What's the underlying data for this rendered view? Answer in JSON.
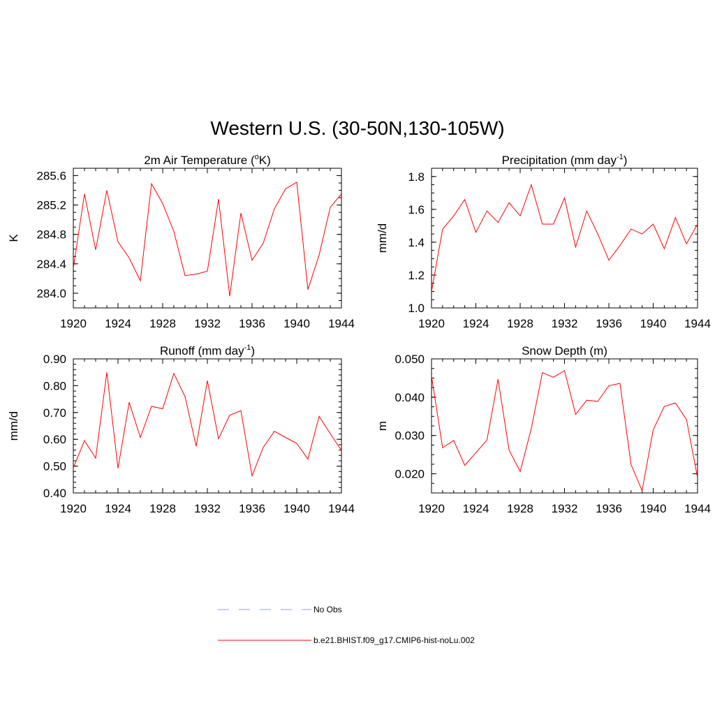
{
  "figure": {
    "title": "Western U.S. (30-50N,130-105W)"
  },
  "legend": {
    "items": [
      {
        "label": "No Obs",
        "color": "#9999ff",
        "style": "dashed"
      },
      {
        "label": "b.e21.BHIST.f09_g17.CMIP6-hist-noLu.002",
        "color": "#ff0000",
        "style": "solid"
      }
    ]
  },
  "chart_data": [
    {
      "type": "line",
      "title": "2m Air Temperature (",
      "title_sup": "o",
      "title_after": "K)",
      "ylabel": "K",
      "xlim": [
        1920,
        1944
      ],
      "ylim": [
        283.8,
        285.7
      ],
      "xticks": [
        "1920",
        "1924",
        "1928",
        "1932",
        "1936",
        "1940",
        "1944"
      ],
      "yticks": [
        "284.0",
        "284.4",
        "284.8",
        "285.2",
        "285.6"
      ],
      "x": [
        1920,
        1921,
        1922,
        1923,
        1924,
        1925,
        1926,
        1927,
        1928,
        1929,
        1930,
        1931,
        1932,
        1933,
        1934,
        1935,
        1936,
        1937,
        1938,
        1939,
        1940,
        1941,
        1942,
        1943,
        1944
      ],
      "series": [
        {
          "color": "#ff0000",
          "values": [
            284.34,
            285.35,
            284.59,
            285.4,
            284.7,
            284.48,
            284.17,
            285.49,
            285.22,
            284.84,
            284.24,
            284.26,
            284.3,
            285.28,
            283.96,
            285.09,
            284.45,
            284.68,
            285.15,
            285.42,
            285.51,
            284.05,
            284.52,
            285.17,
            285.35
          ]
        }
      ]
    },
    {
      "type": "line",
      "title": "Precipitation (mm day",
      "title_sup": "-1",
      "title_after": ")",
      "ylabel": "mm/d",
      "xlim": [
        1920,
        1944
      ],
      "ylim": [
        1.0,
        1.85
      ],
      "xticks": [
        "1920",
        "1924",
        "1928",
        "1932",
        "1936",
        "1940",
        "1944"
      ],
      "yticks": [
        "1.0",
        "1.2",
        "1.4",
        "1.6",
        "1.8"
      ],
      "x": [
        1920,
        1921,
        1922,
        1923,
        1924,
        1925,
        1926,
        1927,
        1928,
        1929,
        1930,
        1931,
        1932,
        1933,
        1934,
        1935,
        1936,
        1937,
        1938,
        1939,
        1940,
        1941,
        1942,
        1943,
        1944
      ],
      "series": [
        {
          "color": "#ff0000",
          "values": [
            1.1,
            1.48,
            1.56,
            1.66,
            1.46,
            1.59,
            1.52,
            1.64,
            1.56,
            1.75,
            1.51,
            1.51,
            1.67,
            1.37,
            1.59,
            1.45,
            1.29,
            1.38,
            1.48,
            1.45,
            1.51,
            1.36,
            1.55,
            1.39,
            1.51
          ]
        }
      ]
    },
    {
      "type": "line",
      "title": "Runoff (mm day",
      "title_sup": "-1",
      "title_after": ")",
      "ylabel": "mm/d",
      "xlim": [
        1920,
        1944
      ],
      "ylim": [
        0.4,
        0.9
      ],
      "xticks": [
        "1920",
        "1924",
        "1928",
        "1932",
        "1936",
        "1940",
        "1944"
      ],
      "yticks": [
        "0.40",
        "0.50",
        "0.60",
        "0.70",
        "0.80",
        "0.90"
      ],
      "x": [
        1920,
        1921,
        1922,
        1923,
        1924,
        1925,
        1926,
        1927,
        1928,
        1929,
        1930,
        1931,
        1932,
        1933,
        1934,
        1935,
        1936,
        1937,
        1938,
        1939,
        1940,
        1941,
        1942,
        1943,
        1944
      ],
      "series": [
        {
          "color": "#ff0000",
          "values": [
            0.494,
            0.595,
            0.53,
            0.85,
            0.492,
            0.738,
            0.607,
            0.723,
            0.714,
            0.846,
            0.759,
            0.574,
            0.819,
            0.602,
            0.69,
            0.707,
            0.464,
            0.57,
            0.63,
            0.607,
            0.585,
            0.526,
            0.686,
            0.621,
            0.559
          ]
        }
      ]
    },
    {
      "type": "line",
      "title": "Snow Depth (m)",
      "title_sup": "",
      "title_after": "",
      "ylabel": "m",
      "xlim": [
        1920,
        1944
      ],
      "ylim": [
        0.015,
        0.05
      ],
      "xticks": [
        "1920",
        "1924",
        "1928",
        "1932",
        "1936",
        "1940",
        "1944"
      ],
      "yticks": [
        "0.020",
        "0.030",
        "0.040",
        "0.050"
      ],
      "x": [
        1920,
        1921,
        1922,
        1923,
        1924,
        1925,
        1926,
        1927,
        1928,
        1929,
        1930,
        1931,
        1932,
        1933,
        1934,
        1935,
        1936,
        1937,
        1938,
        1939,
        1940,
        1941,
        1942,
        1943,
        1944
      ],
      "series": [
        {
          "color": "#ff0000",
          "values": [
            0.0455,
            0.0268,
            0.0287,
            0.0222,
            0.0255,
            0.0288,
            0.0447,
            0.0262,
            0.0206,
            0.0318,
            0.0464,
            0.0452,
            0.0469,
            0.0355,
            0.0392,
            0.0389,
            0.043,
            0.0436,
            0.0224,
            0.0156,
            0.0315,
            0.0376,
            0.0385,
            0.0342,
            0.019
          ]
        }
      ]
    }
  ]
}
